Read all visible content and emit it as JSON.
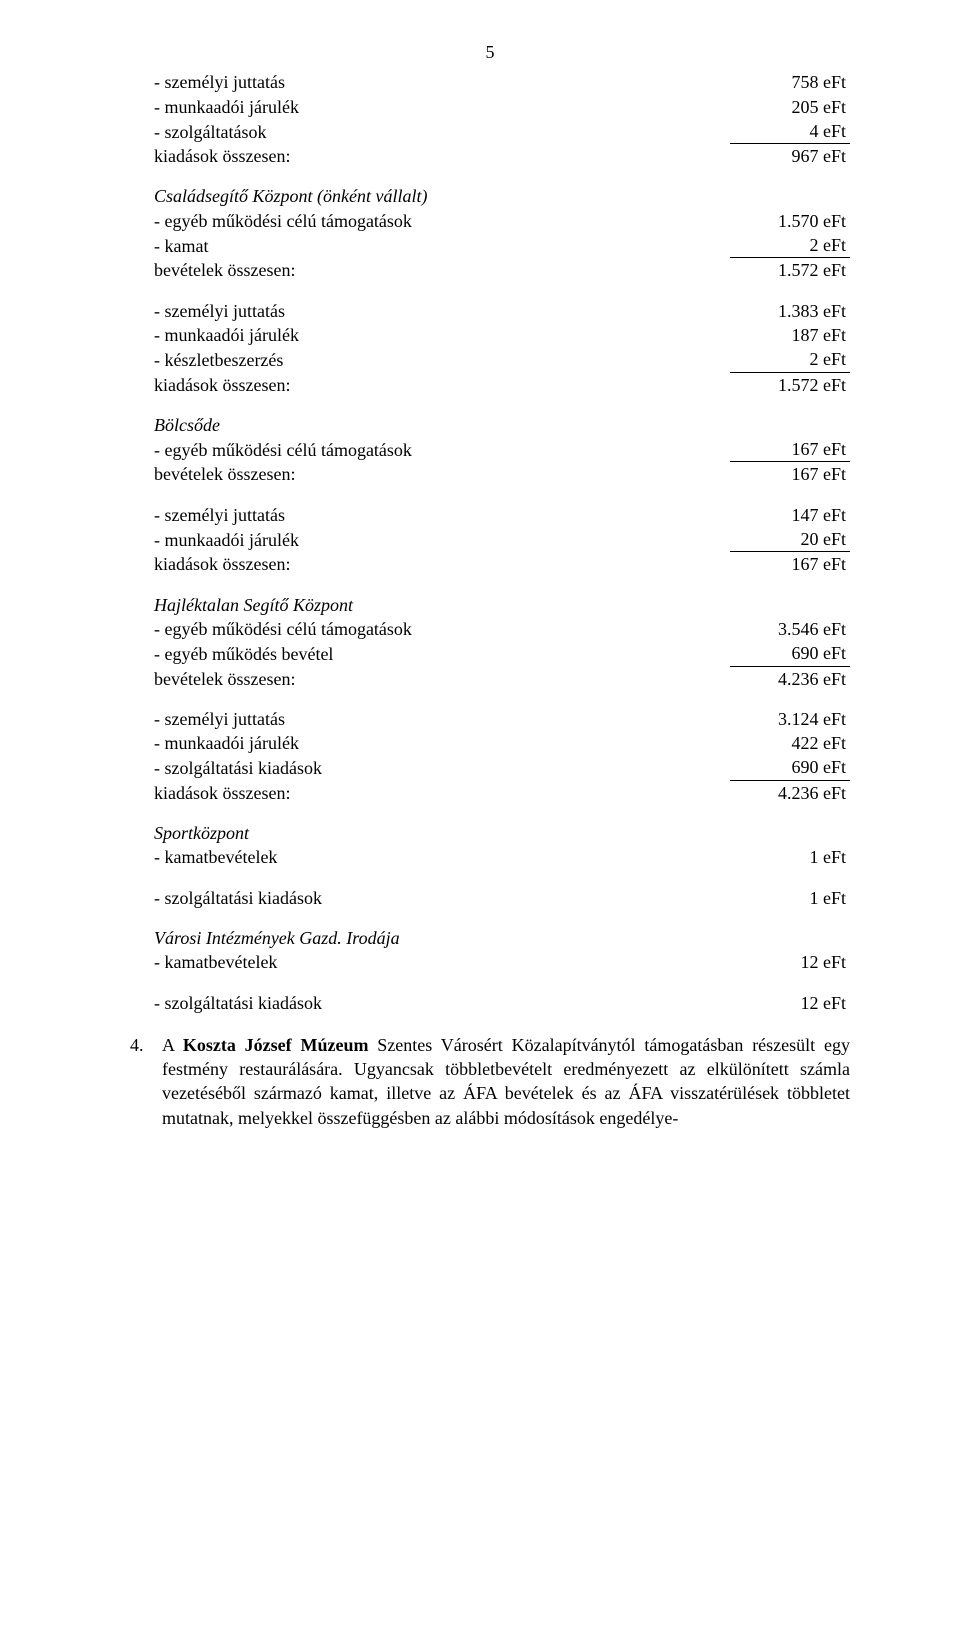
{
  "page_number": "5",
  "s1": {
    "r1_label": "- személyi juttatás",
    "r1_val": "758 eFt",
    "r2_label": "- munkaadói járulék",
    "r2_val": "205 eFt",
    "r3_label": "- szolgáltatások",
    "r3_val": "4 eFt",
    "r4_label": "kiadások összesen:",
    "r4_val": "967 eFt"
  },
  "s2": {
    "title": "Családsegítő Központ (önként vállalt)",
    "r1_label": "- egyéb működési célú támogatások",
    "r1_val": "1.570 eFt",
    "r2_label": "- kamat",
    "r2_val": "2 eFt",
    "r3_label": "bevételek összesen:",
    "r3_val": "1.572 eFt"
  },
  "s3": {
    "r1_label": "- személyi juttatás",
    "r1_val": "1.383 eFt",
    "r2_label": "- munkaadói járulék",
    "r2_val": "187 eFt",
    "r3_label": "- készletbeszerzés",
    "r3_val": "2 eFt",
    "r4_label": "kiadások összesen:",
    "r4_val": "1.572 eFt"
  },
  "s4": {
    "title": "Bölcsőde",
    "r1_label": "- egyéb működési célú támogatások",
    "r1_val": "167 eFt",
    "r2_label": "bevételek összesen:",
    "r2_val": "167 eFt"
  },
  "s5": {
    "r1_label": "- személyi juttatás",
    "r1_val": "147 eFt",
    "r2_label": "- munkaadói járulék",
    "r2_val": "20 eFt",
    "r3_label": "kiadások összesen:",
    "r3_val": "167 eFt"
  },
  "s6": {
    "title": "Hajléktalan Segítő Központ",
    "r1_label": "- egyéb működési célú támogatások",
    "r1_val": "3.546 eFt",
    "r2_label": "- egyéb működés bevétel",
    "r2_val": "690 eFt",
    "r3_label": "bevételek összesen:",
    "r3_val": "4.236 eFt"
  },
  "s7": {
    "r1_label": "- személyi juttatás",
    "r1_val": "3.124 eFt",
    "r2_label": "- munkaadói járulék",
    "r2_val": "422 eFt",
    "r3_label": "- szolgáltatási kiadások",
    "r3_val": "690 eFt",
    "r4_label": "kiadások összesen:",
    "r4_val": "4.236 eFt"
  },
  "s8": {
    "title": "Sportközpont",
    "r1_label": "- kamatbevételek",
    "r1_val": "1 eFt"
  },
  "s9": {
    "r1_label": "- szolgáltatási kiadások",
    "r1_val": "1 eFt"
  },
  "s10": {
    "title": "Városi Intézmények Gazd. Irodája",
    "r1_label": "- kamatbevételek",
    "r1_val": "12 eFt"
  },
  "s11": {
    "r1_label": "- szolgáltatási kiadások",
    "r1_val": "12 eFt"
  },
  "para": {
    "num": "4.",
    "pre": "A ",
    "bold": "Koszta József Múzeum",
    "rest": " Szentes Városért Közalapítványtól támogatásban részesült egy festmény restaurálására. Ugyancsak többletbevételt eredményezett az elkülönített számla vezetéséből származó kamat, illetve az ÁFA bevételek és az ÁFA visszatérülések többletet mutatnak, melyekkel összefüggésben az alábbi módosítások engedélye-"
  }
}
